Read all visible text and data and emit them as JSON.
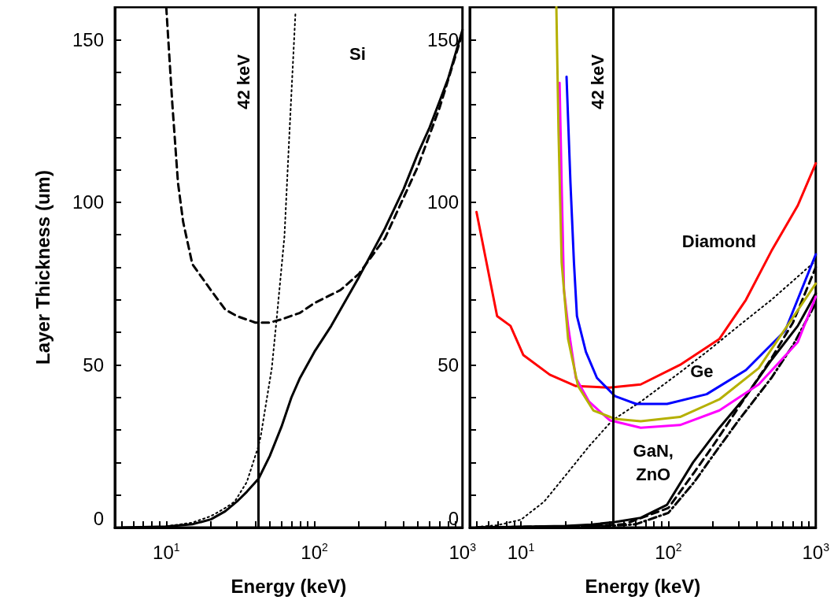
{
  "chart_data": [
    {
      "type": "line",
      "xlabel": "Energy (keV)",
      "ylabel": "Layer Thickness (um)",
      "log": "x",
      "grid": false,
      "xlim": [
        4.5,
        1000
      ],
      "ylim": [
        0,
        160
      ],
      "xticks": [
        {
          "value": 5,
          "label": null
        },
        {
          "value": 6,
          "label": null
        },
        {
          "value": 7,
          "label": null
        },
        {
          "value": 8,
          "label": null
        },
        {
          "value": 9,
          "label": null
        },
        {
          "value": 10,
          "label": "10$^{1}$"
        },
        {
          "value": 20,
          "label": null
        },
        {
          "value": 30,
          "label": null
        },
        {
          "value": 40,
          "label": null
        },
        {
          "value": 50,
          "label": null
        },
        {
          "value": 60,
          "label": null
        },
        {
          "value": 70,
          "label": null
        },
        {
          "value": 80,
          "label": null
        },
        {
          "value": 90,
          "label": null
        },
        {
          "value": 100,
          "label": "10$^{2}$"
        },
        {
          "value": 200,
          "label": null
        },
        {
          "value": 300,
          "label": null
        },
        {
          "value": 400,
          "label": null
        },
        {
          "value": 500,
          "label": null
        },
        {
          "value": 600,
          "label": null
        },
        {
          "value": 700,
          "label": null
        },
        {
          "value": 800,
          "label": null
        },
        {
          "value": 900,
          "label": null
        },
        {
          "value": 1000,
          "label": "10$^{3}$"
        }
      ],
      "yticks": [
        0,
        {
          "value": 10,
          "label": null
        },
        {
          "value": 20,
          "label": null
        },
        {
          "value": 30,
          "label": null
        },
        {
          "value": 40,
          "label": null
        },
        50,
        {
          "value": 60,
          "label": null
        },
        {
          "value": 70,
          "label": null
        },
        {
          "value": 80,
          "label": null
        },
        {
          "value": 90,
          "label": null
        },
        100,
        {
          "value": 110,
          "label": null
        },
        {
          "value": 120,
          "label": null
        },
        {
          "value": 130,
          "label": null
        },
        {
          "value": 140,
          "label": null
        },
        150,
        {
          "value": 160,
          "label": null
        }
      ],
      "ref_lines": [
        {
          "axis": "x",
          "value": 42,
          "label": "42 keV",
          "color": "#000000"
        }
      ],
      "annotations": [
        "Si"
      ],
      "series": [
        {
          "color": "#000000",
          "line_style": "solid",
          "x": [
            5,
            10,
            15,
            20,
            25,
            30,
            35,
            42,
            50,
            60,
            70,
            80,
            100,
            130,
            150,
            200,
            300,
            400,
            500,
            600,
            700,
            800,
            1000
          ],
          "values": [
            0,
            0.3,
            1,
            2.5,
            5,
            8,
            11,
            15,
            22,
            31,
            40,
            46,
            54,
            62,
            67,
            77,
            92,
            104,
            115,
            123,
            131,
            138,
            153
          ]
        },
        {
          "color": "#000000",
          "line_style": "dashed",
          "x": [
            10,
            11,
            12,
            13,
            15,
            20,
            25,
            30,
            40,
            50,
            60,
            80,
            100,
            150,
            200,
            300,
            500,
            700,
            1000
          ],
          "values": [
            160,
            130,
            106,
            94,
            81,
            73,
            67,
            65,
            63,
            63,
            64,
            66,
            69,
            73,
            78,
            89,
            111,
            129,
            152
          ]
        },
        {
          "color": "#000000",
          "line_style": "dotted",
          "x": [
            10,
            15,
            20,
            25,
            29,
            35,
            41.9,
            43.4,
            51.6,
            55.6,
            62.8,
            68,
            74.5
          ],
          "values": [
            0.4,
            1.5,
            3.5,
            6,
            8,
            14,
            25,
            28,
            49,
            64,
            89.5,
            122,
            158
          ]
        }
      ]
    },
    {
      "type": "line",
      "xlabel": "Energy (keV)",
      "log": "x",
      "grid": false,
      "xlim": [
        4.5,
        1000
      ],
      "ylim": [
        0,
        160
      ],
      "xticks": [
        {
          "value": 5,
          "label": null
        },
        {
          "value": 6,
          "label": null
        },
        {
          "value": 7,
          "label": null
        },
        {
          "value": 8,
          "label": null
        },
        {
          "value": 9,
          "label": null
        },
        {
          "value": 10,
          "label": "10$^{1}$"
        },
        {
          "value": 20,
          "label": null
        },
        {
          "value": 30,
          "label": null
        },
        {
          "value": 40,
          "label": null
        },
        {
          "value": 50,
          "label": null
        },
        {
          "value": 60,
          "label": null
        },
        {
          "value": 70,
          "label": null
        },
        {
          "value": 80,
          "label": null
        },
        {
          "value": 90,
          "label": null
        },
        {
          "value": 100,
          "label": "10$^{2}$"
        },
        {
          "value": 200,
          "label": null
        },
        {
          "value": 300,
          "label": null
        },
        {
          "value": 400,
          "label": null
        },
        {
          "value": 500,
          "label": null
        },
        {
          "value": 600,
          "label": null
        },
        {
          "value": 700,
          "label": null
        },
        {
          "value": 800,
          "label": null
        },
        {
          "value": 900,
          "label": null
        },
        {
          "value": 1000,
          "label": "10$^{3}$"
        }
      ],
      "yticks": [
        0,
        {
          "value": 10,
          "label": null
        },
        {
          "value": 20,
          "label": null
        },
        {
          "value": 30,
          "label": null
        },
        {
          "value": 40,
          "label": null
        },
        50,
        {
          "value": 60,
          "label": null
        },
        {
          "value": 70,
          "label": null
        },
        {
          "value": 80,
          "label": null
        },
        {
          "value": 90,
          "label": null
        },
        100,
        {
          "value": 110,
          "label": null
        },
        {
          "value": 120,
          "label": null
        },
        {
          "value": 130,
          "label": null
        },
        {
          "value": 140,
          "label": null
        },
        150,
        {
          "value": 160,
          "label": null
        }
      ],
      "ref_lines": [
        {
          "axis": "x",
          "value": 42,
          "label": "42 keV",
          "color": "#000000"
        }
      ],
      "annotations": [
        "Diamond",
        "Ge",
        "GaN,\nZnO"
      ],
      "series": [
        {
          "color": "#000000",
          "line_style": "dotted",
          "x": [
            5,
            6.9,
            10,
            14.4,
            20.9,
            29,
            41.8,
            65,
            120,
            182,
            300,
            500,
            1000
          ],
          "values": [
            0.2,
            0.7,
            2.4,
            8,
            17,
            25,
            33,
            38.7,
            47.7,
            54,
            62,
            70,
            82
          ]
        },
        {
          "color": "#000000",
          "line_style": "solid",
          "x": [
            5,
            20,
            30,
            43.5,
            65,
            98,
            147,
            222,
            336,
            500,
            755,
            1000
          ],
          "values": [
            0,
            0.5,
            0.9,
            1.7,
            3,
            7,
            20,
            30.7,
            40.4,
            51.5,
            62,
            72
          ]
        },
        {
          "color": "#000000",
          "line_style": "dashed",
          "x": [
            5,
            30,
            50,
            100,
            150,
            200,
            300,
            500,
            700,
            1000
          ],
          "values": [
            0,
            0.5,
            1,
            6,
            17,
            25,
            37,
            52,
            63,
            80
          ]
        },
        {
          "color": "#000000",
          "line_style": "dashdot",
          "x": [
            5,
            40,
            60,
            100,
            150,
            200,
            300,
            500,
            700,
            1000
          ],
          "values": [
            0,
            0.5,
            1,
            4.5,
            14,
            22,
            33,
            46,
            56,
            69
          ]
        },
        {
          "color": "#ff0000",
          "line_style": "solid",
          "x": [
            5,
            6.9,
            8.5,
            10.4,
            15.7,
            23.6,
            40,
            65,
            120,
            222,
            336,
            500,
            755,
            1000
          ],
          "values": [
            97,
            65,
            62,
            53,
            47,
            43.5,
            43,
            44,
            50,
            58,
            70,
            85,
            99,
            112
          ]
        },
        {
          "color": "#0000ff",
          "line_style": "solid",
          "x": [
            20.4,
            21.7,
            22.9,
            24,
            27.6,
            32.8,
            43.5,
            60.5,
            98,
            182,
            336,
            620,
            1000
          ],
          "values": [
            138.6,
            105.7,
            81.5,
            65,
            54,
            46,
            40.4,
            38,
            38,
            41,
            48.4,
            60.5,
            84
          ]
        },
        {
          "color": "#ff00ff",
          "line_style": "solid",
          "x": [
            18.3,
            18.9,
            19.6,
            20.9,
            23.6,
            29,
            40,
            65,
            120,
            222,
            410,
            755,
            1000
          ],
          "values": [
            136.7,
            105.7,
            73,
            62,
            46,
            38.7,
            33,
            30.7,
            31.5,
            36,
            44,
            57,
            71
          ]
        },
        {
          "color": "#b5b000",
          "line_style": "solid",
          "x": [
            17.4,
            18,
            18.9,
            20.9,
            24.4,
            31,
            43.5,
            65,
            120,
            222,
            410,
            1000
          ],
          "values": [
            160,
            121.7,
            81.5,
            58,
            43.5,
            36,
            33.4,
            32.7,
            34,
            39.4,
            49,
            75
          ]
        }
      ]
    }
  ]
}
